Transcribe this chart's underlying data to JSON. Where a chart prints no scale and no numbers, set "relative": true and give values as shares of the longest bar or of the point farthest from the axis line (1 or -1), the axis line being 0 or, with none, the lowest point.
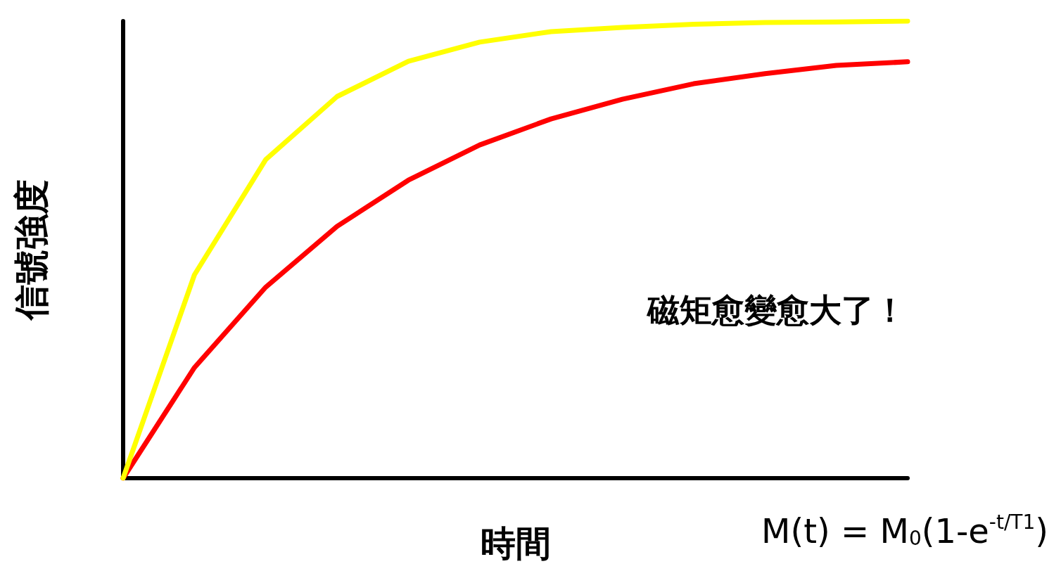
{
  "chart_data": {
    "type": "line",
    "relative": true,
    "xlabel": "時間",
    "ylabel": "信號強度",
    "annotations": [
      "磁矩愈變愈大了！",
      "M(t) = M$_{0}$(1-e$^{-t/T1}$)"
    ],
    "categories": [
      null,
      null,
      null,
      null,
      null,
      null,
      null,
      null,
      null,
      null,
      null,
      null
    ],
    "series": [
      {
        "color": "#ff0000",
        "values": [
          0,
          0.242,
          0.418,
          0.551,
          0.652,
          0.729,
          0.786,
          0.829,
          0.863,
          0.885,
          0.903,
          0.911
        ]
      },
      {
        "color": "#ffff00",
        "values": [
          0,
          0.445,
          0.697,
          0.835,
          0.912,
          0.954,
          0.977,
          0.986,
          0.993,
          0.997,
          0.998,
          1
        ]
      }
    ],
    "grid": false,
    "marker": "none",
    "line_style": "solid"
  }
}
